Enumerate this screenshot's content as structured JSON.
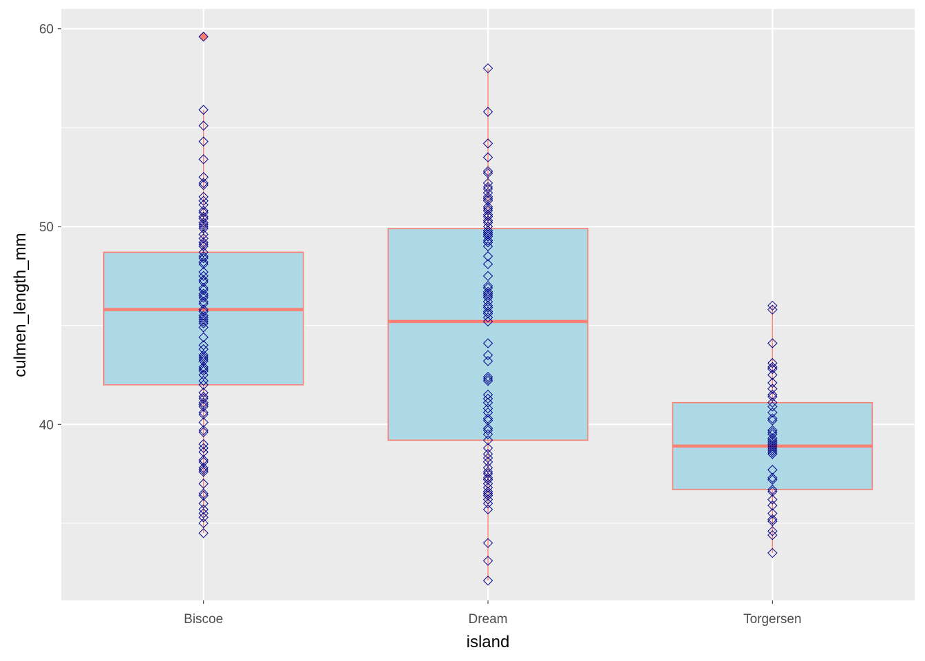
{
  "chart_data": {
    "type": "boxplot",
    "title": "",
    "xlabel": "island",
    "ylabel": "culmen_length_mm",
    "ylim": [
      31.1,
      61.0
    ],
    "y_ticks": [
      40,
      50,
      60
    ],
    "y_minor_ticks": [
      35,
      45,
      55
    ],
    "categories": [
      "Biscoe",
      "Dream",
      "Torgersen"
    ],
    "colors": {
      "panel_bg": "#ebebeb",
      "grid": "#ffffff",
      "box_fill": "#add8e6",
      "box_outline": "#fa8072",
      "point_stroke": "#00008b",
      "outlier_fill": "#fa8072"
    },
    "boxes": [
      {
        "category": "Biscoe",
        "min": 34.5,
        "q1": 42.0,
        "median": 45.8,
        "q3": 48.7,
        "max": 55.9,
        "outliers": [
          59.6
        ]
      },
      {
        "category": "Dream",
        "min": 32.1,
        "q1": 39.2,
        "median": 45.2,
        "q3": 49.9,
        "max": 58.0,
        "outliers": []
      },
      {
        "category": "Torgersen",
        "min": 33.5,
        "q1": 36.7,
        "median": 38.9,
        "q3": 41.1,
        "max": 46.0,
        "outliers": []
      }
    ],
    "points": [
      {
        "category": "Biscoe",
        "values": [
          34.5,
          35.0,
          35.3,
          35.5,
          35.7,
          36.0,
          36.4,
          36.5,
          37.0,
          37.6,
          37.7,
          37.8,
          38.1,
          38.2,
          38.6,
          38.8,
          39.0,
          39.6,
          39.7,
          40.1,
          40.5,
          40.6,
          40.9,
          41.0,
          41.1,
          41.3,
          41.4,
          41.6,
          42.0,
          42.2,
          42.5,
          42.7,
          42.8,
          42.9,
          43.2,
          43.3,
          43.4,
          43.5,
          43.8,
          44.0,
          44.4,
          44.9,
          45.1,
          45.2,
          45.3,
          45.4,
          45.5,
          45.7,
          45.8,
          46.1,
          46.2,
          46.4,
          46.5,
          46.6,
          46.8,
          46.9,
          47.2,
          47.3,
          47.5,
          47.7,
          48.1,
          48.2,
          48.4,
          48.5,
          48.7,
          49.0,
          49.1,
          49.2,
          49.4,
          49.6,
          49.9,
          50.0,
          50.1,
          50.2,
          50.4,
          50.5,
          50.7,
          50.8,
          51.1,
          51.3,
          51.5,
          52.1,
          52.2,
          52.5,
          53.4,
          54.3,
          55.1,
          55.9,
          59.6
        ]
      },
      {
        "category": "Dream",
        "values": [
          32.1,
          33.1,
          34.0,
          35.7,
          36.0,
          36.2,
          36.4,
          36.5,
          36.6,
          36.8,
          37.0,
          37.2,
          37.3,
          37.5,
          37.6,
          37.8,
          38.1,
          38.3,
          38.5,
          38.8,
          39.2,
          39.5,
          39.7,
          39.8,
          40.2,
          40.3,
          40.6,
          40.8,
          41.1,
          41.3,
          41.5,
          42.2,
          42.3,
          42.4,
          43.2,
          43.5,
          44.1,
          45.2,
          45.4,
          45.6,
          45.7,
          45.9,
          46.0,
          46.2,
          46.4,
          46.5,
          46.6,
          46.7,
          46.9,
          47.0,
          47.5,
          48.1,
          48.5,
          49.0,
          49.2,
          49.3,
          49.5,
          49.6,
          49.7,
          49.8,
          50.0,
          50.2,
          50.3,
          50.5,
          50.6,
          50.8,
          50.9,
          51.0,
          51.3,
          51.4,
          51.5,
          51.7,
          51.9,
          52.0,
          52.2,
          52.7,
          52.8,
          53.5,
          54.2,
          55.8,
          58.0
        ]
      },
      {
        "category": "Torgersen",
        "values": [
          33.5,
          34.4,
          34.6,
          35.1,
          35.2,
          35.5,
          35.9,
          36.2,
          36.6,
          36.7,
          37.2,
          37.3,
          37.7,
          38.5,
          38.6,
          38.7,
          38.8,
          38.9,
          39.0,
          39.1,
          39.2,
          39.3,
          39.5,
          39.6,
          39.7,
          40.2,
          40.3,
          40.6,
          40.9,
          41.1,
          41.4,
          41.5,
          41.8,
          42.1,
          42.5,
          42.8,
          42.9,
          43.1,
          44.1,
          45.8,
          46.0
        ]
      }
    ]
  }
}
